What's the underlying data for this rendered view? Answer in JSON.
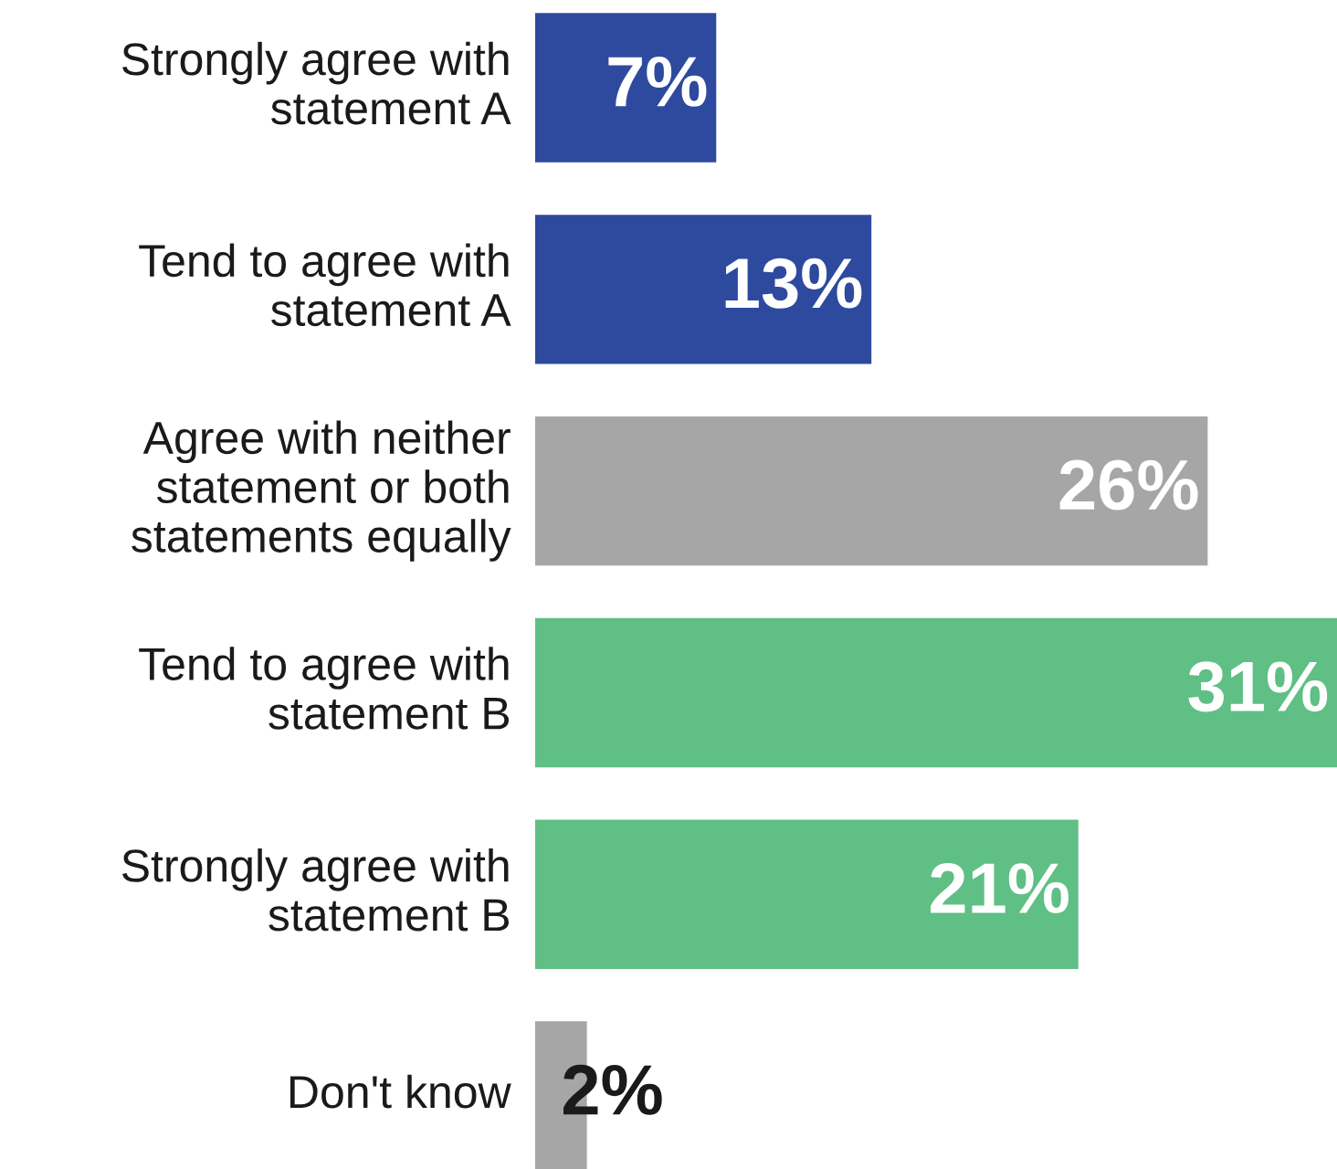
{
  "chart_data": {
    "type": "bar",
    "orientation": "horizontal",
    "categories": [
      "Strongly agree with\nstatement A",
      "Tend to agree with\nstatement A",
      "Agree with neither\nstatement or both\nstatements equally",
      "Tend to agree with\nstatement B",
      "Strongly agree with\nstatement B",
      "Don't know"
    ],
    "values": [
      7,
      13,
      26,
      31,
      21,
      2
    ],
    "colors": [
      "#2e4a9e",
      "#2e4a9e",
      "#a6a6a6",
      "#5fbf84",
      "#5fbf84",
      "#a6a6a6"
    ],
    "value_labels": [
      "7%",
      "13%",
      "26%",
      "31%",
      "21%",
      "2%"
    ],
    "legend": false
  }
}
